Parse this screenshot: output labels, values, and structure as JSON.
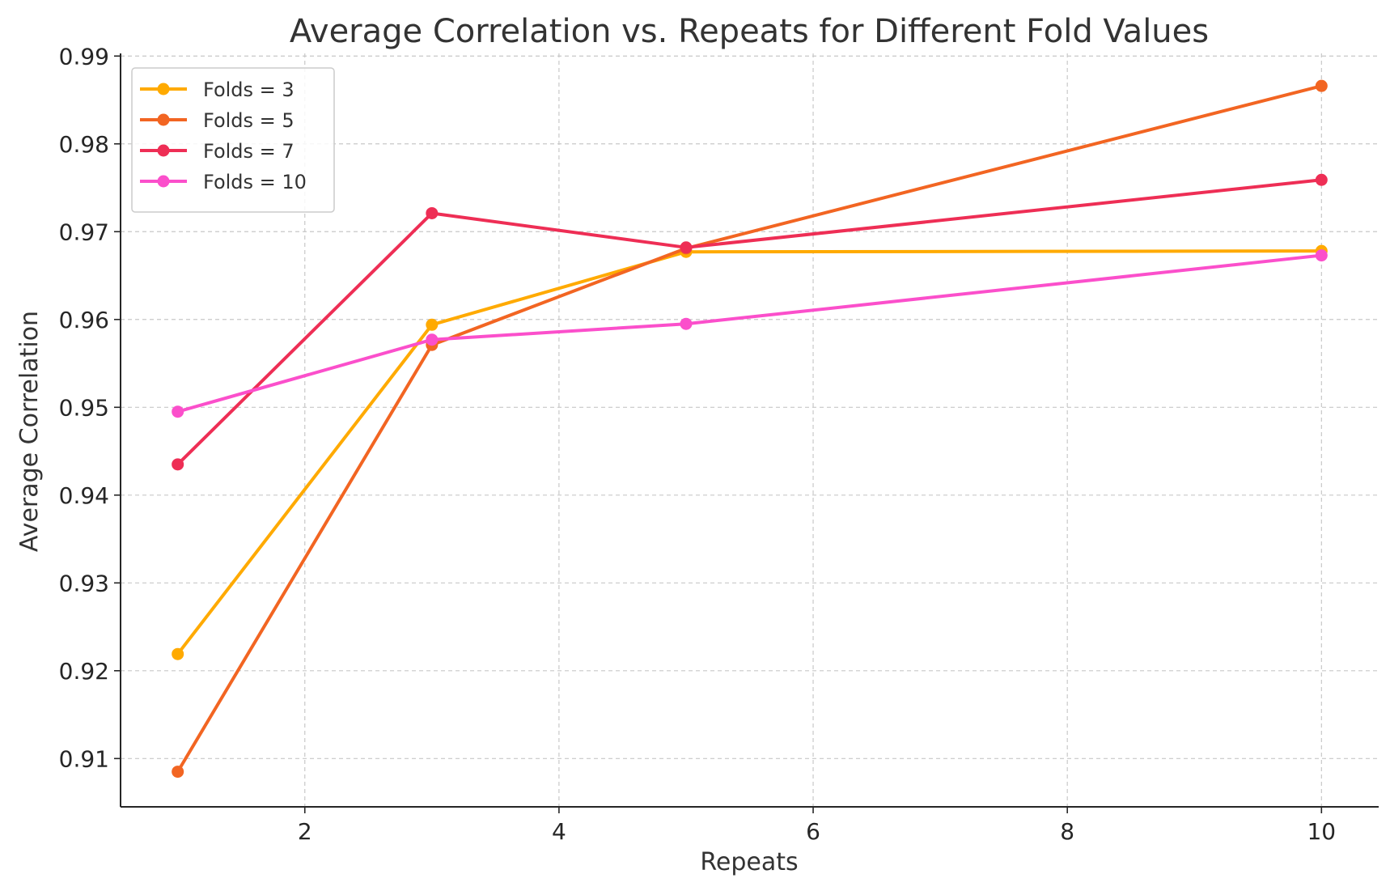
{
  "chart_data": {
    "type": "line",
    "title": "Average Correlation vs. Repeats for Different Fold Values",
    "xlabel": "Repeats",
    "ylabel": "Average Correlation",
    "x": [
      1,
      3,
      5,
      10
    ],
    "xlim": [
      0.55,
      10.45
    ],
    "ylim": [
      0.9045,
      0.9903
    ],
    "xticks": [
      2,
      4,
      6,
      8,
      10
    ],
    "xtick_labels": [
      "2",
      "4",
      "6",
      "8",
      "10"
    ],
    "yticks": [
      0.91,
      0.92,
      0.93,
      0.94,
      0.95,
      0.96,
      0.97,
      0.98,
      0.99
    ],
    "ytick_labels": [
      "0.91",
      "0.92",
      "0.93",
      "0.94",
      "0.95",
      "0.96",
      "0.97",
      "0.98",
      "0.99"
    ],
    "grid": true,
    "legend_position": "top-left",
    "series": [
      {
        "name": "Folds = 3",
        "color": "#FFAA00",
        "values": [
          0.9219,
          0.9594,
          0.9677,
          0.9678
        ]
      },
      {
        "name": "Folds = 5",
        "color": "#F26522",
        "values": [
          0.9085,
          0.9571,
          0.9681,
          0.9866
        ]
      },
      {
        "name": "Folds = 7",
        "color": "#EE2E55",
        "values": [
          0.9435,
          0.9721,
          0.9682,
          0.9759
        ]
      },
      {
        "name": "Folds = 10",
        "color": "#FB4FCB",
        "values": [
          0.9495,
          0.9577,
          0.9595,
          0.9673
        ]
      }
    ]
  }
}
